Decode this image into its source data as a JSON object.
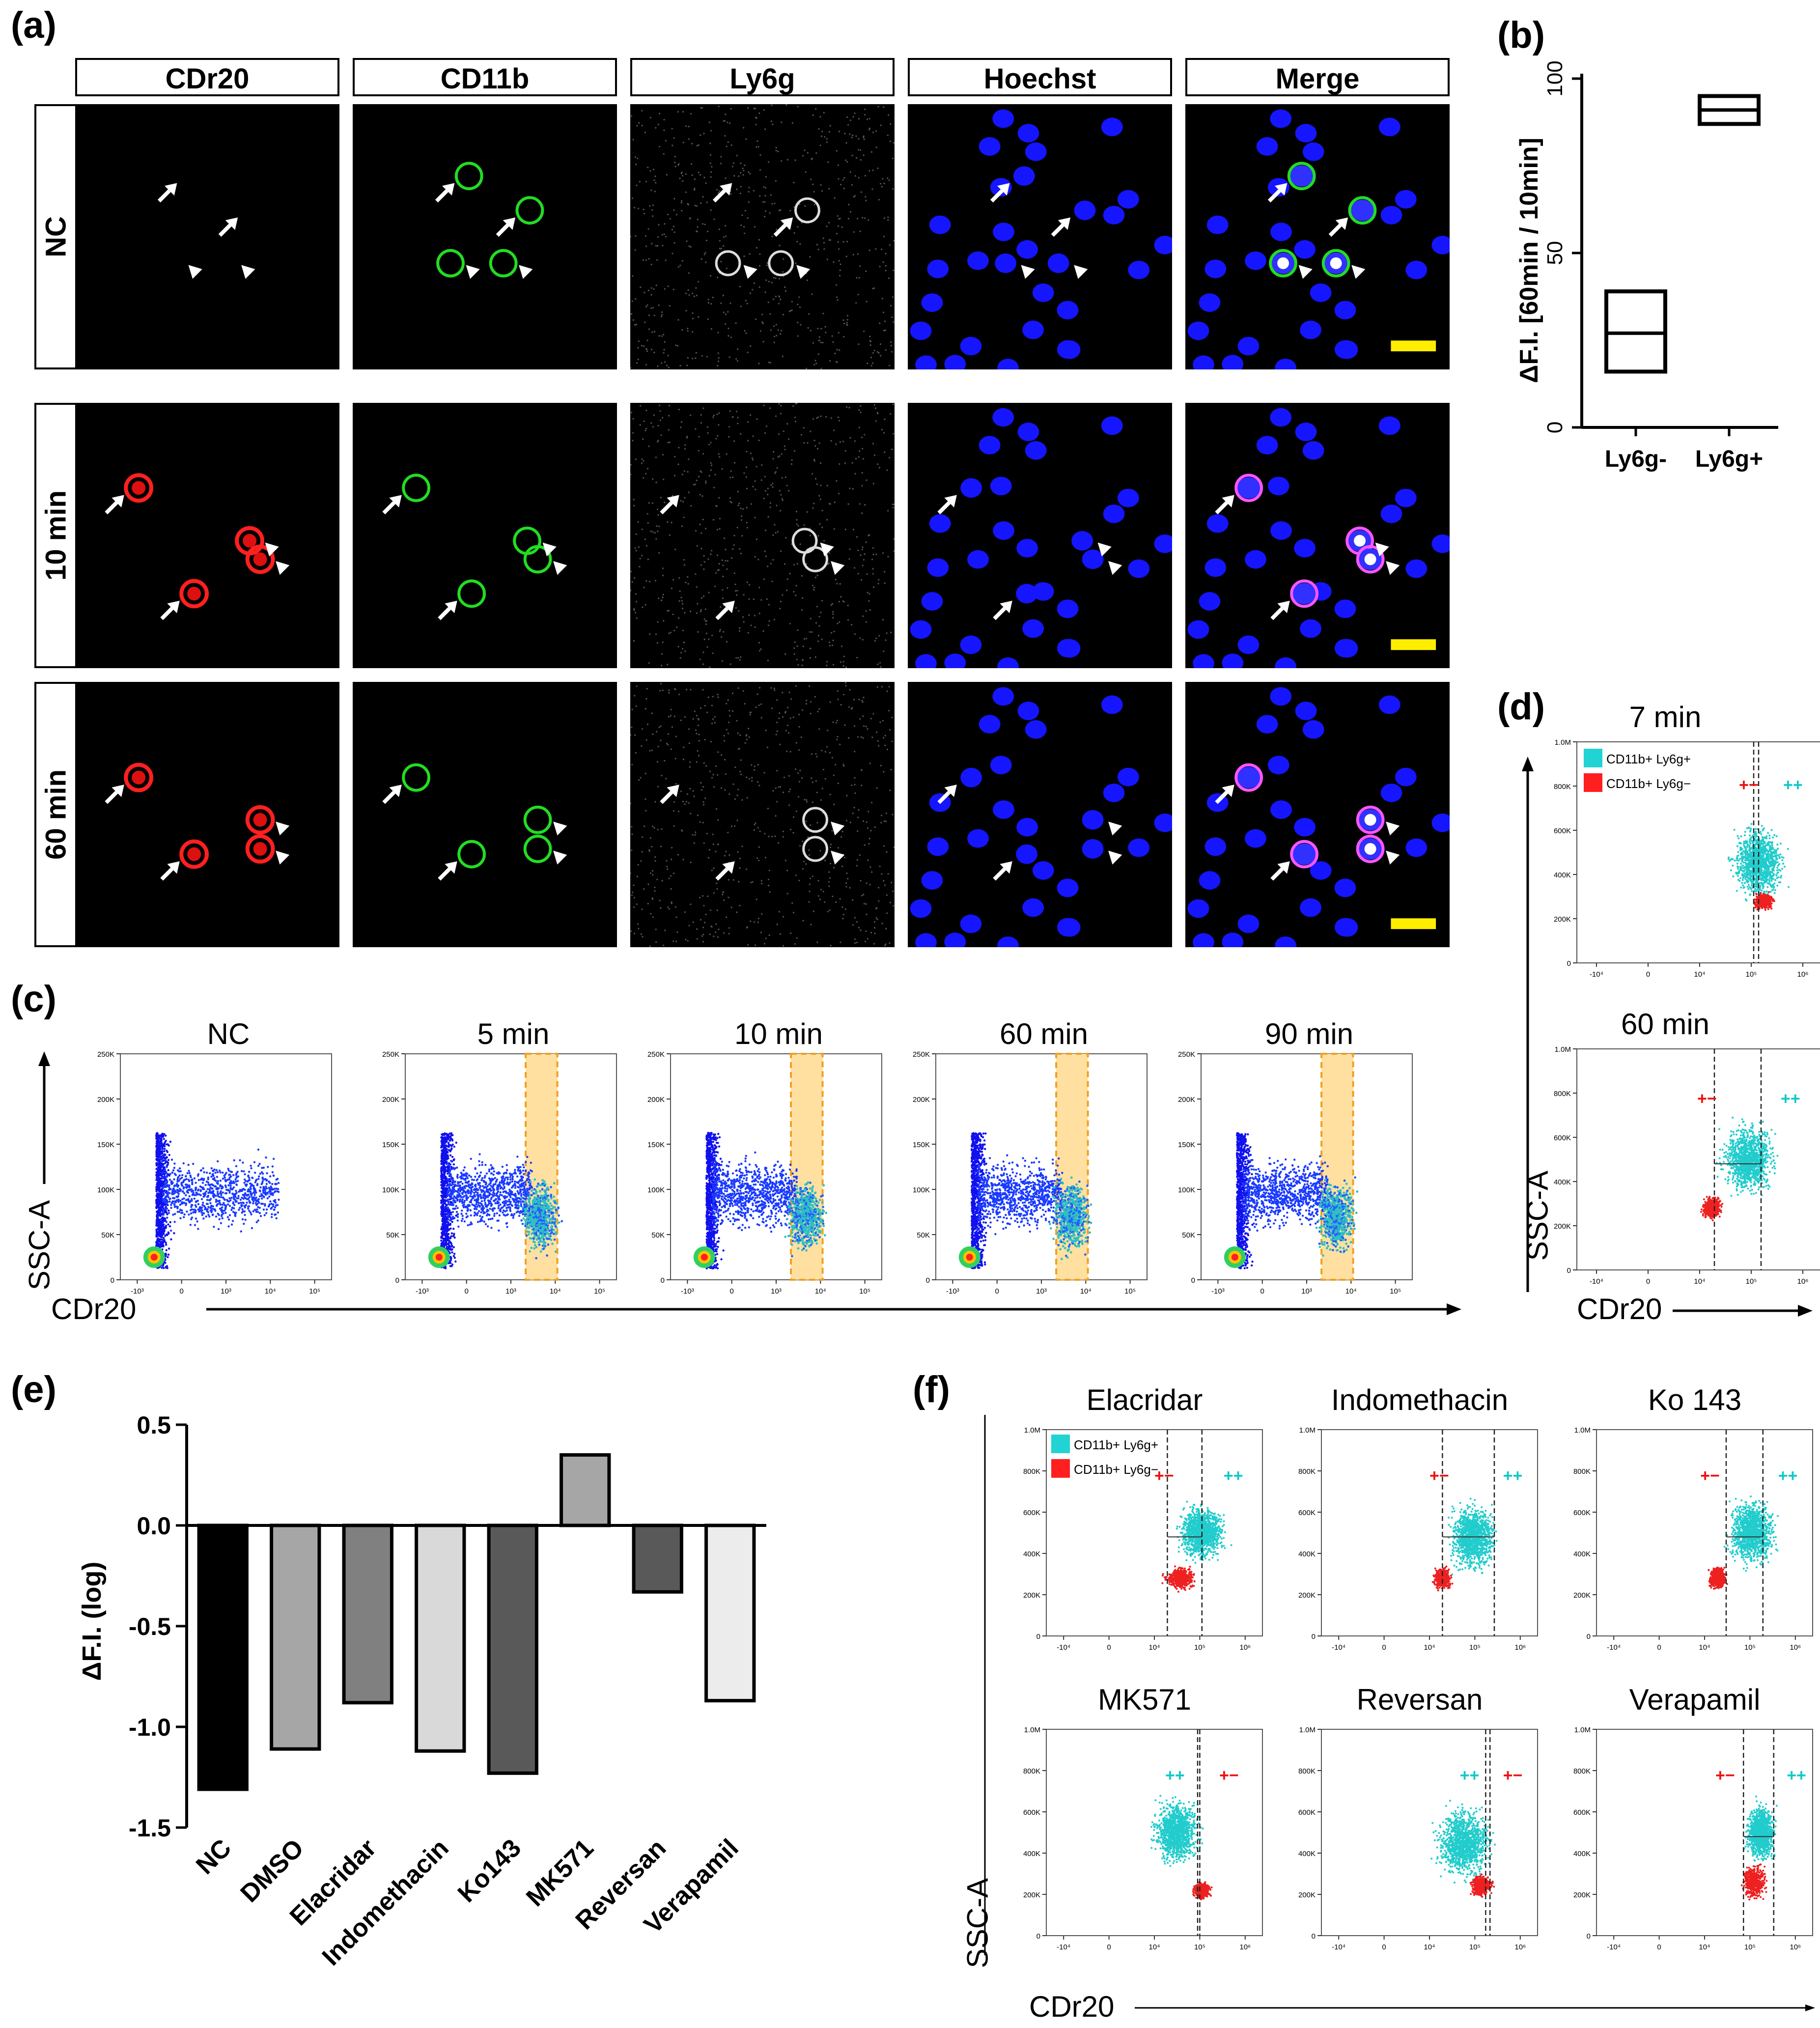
{
  "panel_labels": {
    "a": "(a)",
    "b": "(b)",
    "c": "(c)",
    "d": "(d)",
    "e": "(e)",
    "f": "(f)"
  },
  "panel_a": {
    "columns": [
      "CDr20",
      "CD11b",
      "Ly6g",
      "Hoechst",
      "Merge"
    ],
    "rows": [
      "NC",
      "10 min",
      "60 min"
    ]
  },
  "panel_c": {
    "titles": [
      "NC",
      "5 min",
      "10 min",
      "60 min",
      "90 min"
    ],
    "y_axis_title": "SSC-A",
    "x_axis_title": "CDr20",
    "y_ticks": [
      "250K",
      "200K",
      "150K",
      "100K",
      "50K",
      "0"
    ],
    "x_ticks": [
      "-10³",
      "0",
      "10³",
      "10⁴",
      "10⁵"
    ]
  },
  "panel_d": {
    "titles": [
      "7 min",
      "60 min"
    ],
    "legend": [
      {
        "label": "CD11b+ Ly6g+",
        "color": "#22d3d3"
      },
      {
        "label": "CD11b+ Ly6g−",
        "color": "#ff1f1f"
      }
    ],
    "gate_labels": {
      "pm": "+−",
      "pp": "++"
    },
    "y_axis_title": "SSC-A",
    "x_axis_title": "CDr20",
    "y_ticks": [
      "1.0M",
      "800K",
      "600K",
      "400K",
      "200K",
      "0"
    ],
    "x_ticks": [
      "-10⁴",
      "0",
      "10⁴",
      "10⁵",
      "10⁶"
    ]
  },
  "panel_f": {
    "titles": [
      "Elacridar",
      "Indomethacin",
      "Ko 143",
      "MK571",
      "Reversan",
      "Verapamil"
    ],
    "legend": [
      {
        "label": "CD11b+ Ly6g+",
        "color": "#22d3d3"
      },
      {
        "label": "CD11b+ Ly6g−",
        "color": "#ff1f1f"
      }
    ],
    "gate_labels": {
      "pm": "+−",
      "pp": "++"
    },
    "y_axis_title": "SSC-A",
    "x_axis_title": "CDr20",
    "y_ticks": [
      "1.0M",
      "800K",
      "600K",
      "400K",
      "200K",
      "0"
    ],
    "x_ticks": [
      "-10⁴",
      "0",
      "10⁴",
      "10⁵",
      "10⁶"
    ]
  },
  "chart_data": [
    {
      "panel": "b",
      "type": "box",
      "ylabel": "ΔF.I. [60min / 10min]",
      "ylim": [
        0,
        100
      ],
      "yticks": [
        0,
        50,
        100
      ],
      "categories": [
        "Ly6g-",
        "Ly6g+"
      ],
      "boxes": [
        {
          "category": "Ly6g-",
          "min": 16,
          "median": 27,
          "max": 39
        },
        {
          "category": "Ly6g+",
          "min": 87,
          "median": 91,
          "max": 95
        }
      ]
    },
    {
      "panel": "e",
      "type": "bar",
      "ylabel": "ΔF.I. (log)",
      "ylim": [
        -1.5,
        0.5
      ],
      "yticks": [
        "0.5",
        "0.0",
        "-0.5",
        "-1.0",
        "-1.5"
      ],
      "yticks_values": [
        0.5,
        0.0,
        -0.5,
        -1.0,
        -1.5
      ],
      "categories": [
        "NC",
        "DMSO",
        "Elacridar",
        "Indomethacin",
        "Ko143",
        "MK571",
        "Reversan",
        "Verapamil"
      ],
      "values": [
        -1.31,
        -1.11,
        -0.88,
        -1.12,
        -1.23,
        0.35,
        -0.33,
        -0.87
      ],
      "colors": [
        "#000000",
        "#a6a6a6",
        "#808080",
        "#d9d9d9",
        "#595959",
        "#a6a6a6",
        "#595959",
        "#ececec"
      ]
    }
  ]
}
